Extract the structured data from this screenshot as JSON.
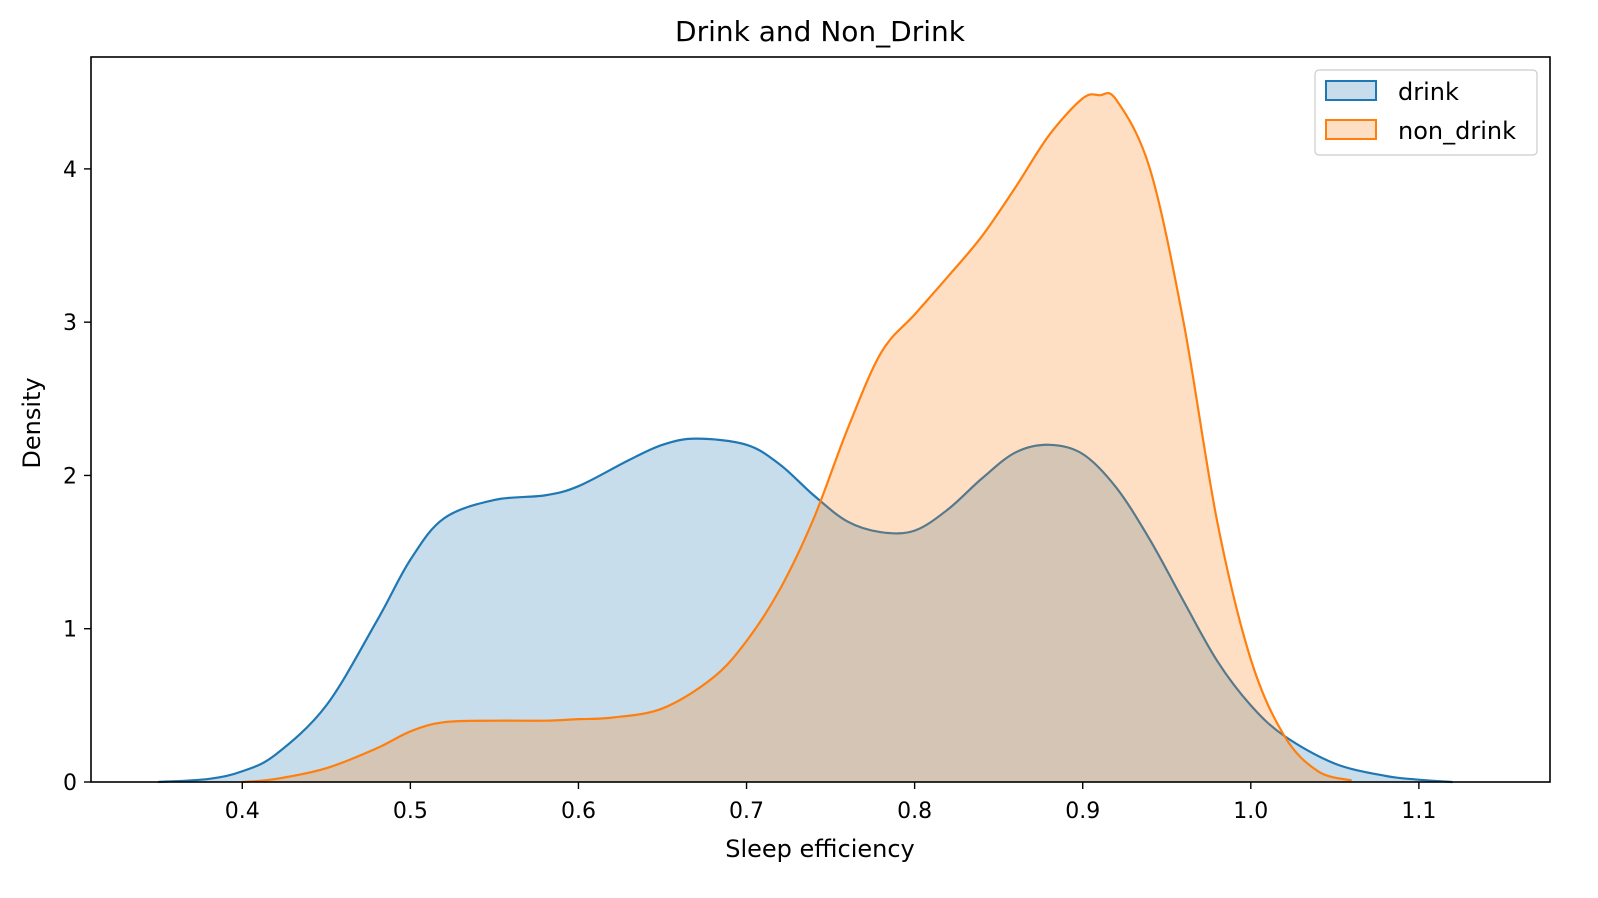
{
  "chart_data": {
    "type": "area",
    "title": "Drink and Non_Drink",
    "xlabel": "Sleep efficiency",
    "ylabel": "Density",
    "xlim": [
      0.31,
      1.178
    ],
    "ylim": [
      0,
      4.73
    ],
    "xticks": [
      0.4,
      0.5,
      0.6,
      0.7,
      0.8,
      0.9,
      1.0,
      1.1
    ],
    "xtick_labels": [
      "0.4",
      "0.5",
      "0.6",
      "0.7",
      "0.8",
      "0.9",
      "1.0",
      "1.1"
    ],
    "yticks": [
      0,
      1,
      2,
      3,
      4
    ],
    "ytick_labels": [
      "0",
      "1",
      "2",
      "3",
      "4"
    ],
    "grid": false,
    "legend_position": "top-right",
    "series": [
      {
        "name": "drink",
        "color": "#1f77b4",
        "fill": "rgba(31,119,180,0.25)",
        "x": [
          0.35,
          0.38,
          0.4,
          0.42,
          0.45,
          0.48,
          0.5,
          0.52,
          0.55,
          0.58,
          0.6,
          0.63,
          0.65,
          0.67,
          0.7,
          0.72,
          0.74,
          0.76,
          0.78,
          0.8,
          0.82,
          0.84,
          0.86,
          0.88,
          0.9,
          0.92,
          0.94,
          0.96,
          0.98,
          1.0,
          1.02,
          1.05,
          1.08,
          1.1,
          1.12
        ],
        "y": [
          0.0,
          0.02,
          0.07,
          0.18,
          0.5,
          1.05,
          1.45,
          1.72,
          1.84,
          1.87,
          1.93,
          2.1,
          2.2,
          2.24,
          2.2,
          2.07,
          1.87,
          1.7,
          1.63,
          1.64,
          1.78,
          1.98,
          2.15,
          2.2,
          2.14,
          1.92,
          1.58,
          1.18,
          0.79,
          0.5,
          0.3,
          0.12,
          0.04,
          0.015,
          0.0
        ]
      },
      {
        "name": "non_drink",
        "color": "#ff7f0e",
        "fill": "rgba(255,127,14,0.25)",
        "x": [
          0.4,
          0.42,
          0.45,
          0.48,
          0.5,
          0.52,
          0.55,
          0.58,
          0.6,
          0.62,
          0.65,
          0.68,
          0.7,
          0.72,
          0.74,
          0.76,
          0.78,
          0.8,
          0.82,
          0.84,
          0.86,
          0.88,
          0.9,
          0.91,
          0.92,
          0.94,
          0.96,
          0.98,
          1.0,
          1.02,
          1.04,
          1.06
        ],
        "y": [
          0.0,
          0.02,
          0.09,
          0.22,
          0.33,
          0.39,
          0.4,
          0.4,
          0.41,
          0.42,
          0.48,
          0.68,
          0.92,
          1.26,
          1.72,
          2.3,
          2.8,
          3.05,
          3.3,
          3.56,
          3.88,
          4.22,
          4.46,
          4.48,
          4.45,
          4.0,
          3.0,
          1.7,
          0.8,
          0.3,
          0.07,
          0.01
        ]
      }
    ]
  }
}
